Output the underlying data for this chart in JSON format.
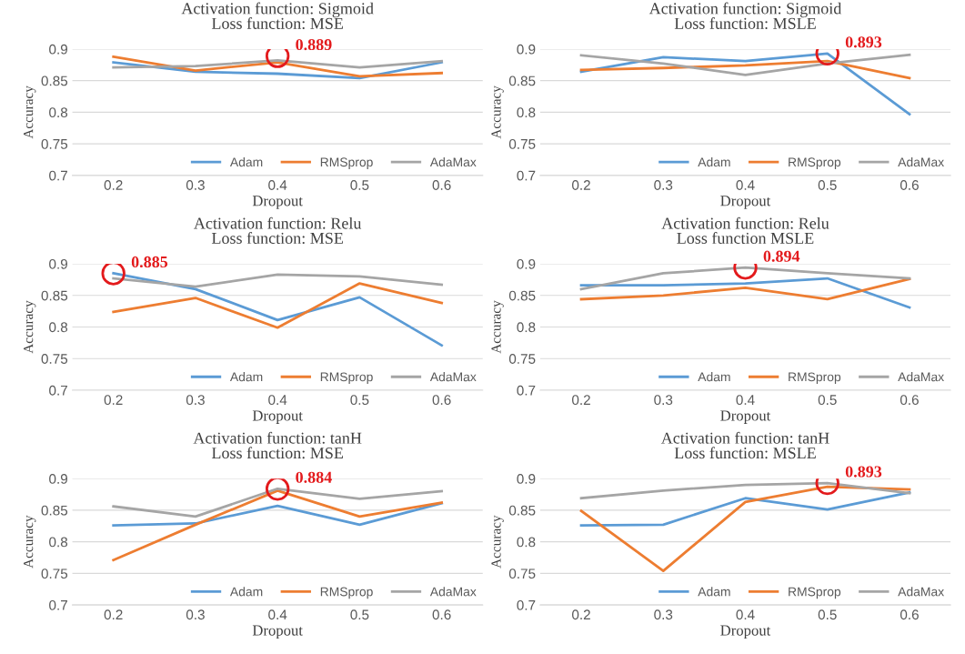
{
  "chart_data": [
    {
      "type": "line",
      "title": "Activation function: Sigmoid\nLoss function: MSE",
      "xlabel": "Dropout",
      "ylabel": "Accuracy",
      "categories": [
        "0.2",
        "0.3",
        "0.4",
        "0.5",
        "0.6"
      ],
      "ylim": [
        0.7,
        0.9
      ],
      "yticks": [
        0.7,
        0.75,
        0.8,
        0.85,
        0.9
      ],
      "grid": "y",
      "legend": "bottom right",
      "series": [
        {
          "name": "Adam",
          "color": "#5b9bd5",
          "values": [
            0.879,
            0.864,
            0.861,
            0.854,
            0.879
          ]
        },
        {
          "name": "RMSprop",
          "color": "#ed7d31",
          "values": [
            0.888,
            0.866,
            0.879,
            0.857,
            0.862
          ]
        },
        {
          "name": "AdaMax",
          "color": "#a5a5a5",
          "values": [
            0.871,
            0.873,
            0.882,
            0.871,
            0.881
          ]
        }
      ],
      "annotations": [
        {
          "text": "0.889",
          "x": "0.4",
          "y": 0.889
        }
      ]
    },
    {
      "type": "line",
      "title": "Activation function: Sigmoid\nLoss function: MSLE",
      "xlabel": "Dropout",
      "ylabel": "Accuracy",
      "categories": [
        "0.2",
        "0.3",
        "0.4",
        "0.5",
        "0.6"
      ],
      "ylim": [
        0.7,
        0.9
      ],
      "yticks": [
        0.7,
        0.75,
        0.8,
        0.85,
        0.9
      ],
      "grid": "y",
      "legend": "bottom right",
      "series": [
        {
          "name": "Adam",
          "color": "#5b9bd5",
          "values": [
            0.864,
            0.887,
            0.881,
            0.893,
            0.797
          ]
        },
        {
          "name": "RMSprop",
          "color": "#ed7d31",
          "values": [
            0.867,
            0.87,
            0.874,
            0.881,
            0.854
          ]
        },
        {
          "name": "AdaMax",
          "color": "#a5a5a5",
          "values": [
            0.89,
            0.877,
            0.859,
            0.877,
            0.891
          ]
        }
      ],
      "annotations": [
        {
          "text": "0.893",
          "x": "0.5",
          "y": 0.893
        }
      ]
    },
    {
      "type": "line",
      "title": "Activation function: Relu\nLoss function: MSE",
      "xlabel": "Dropout",
      "ylabel": "Accuracy",
      "categories": [
        "0.2",
        "0.3",
        "0.4",
        "0.5",
        "0.6"
      ],
      "ylim": [
        0.7,
        0.9
      ],
      "yticks": [
        0.7,
        0.75,
        0.8,
        0.85,
        0.9
      ],
      "grid": "y",
      "legend": "bottom right",
      "series": [
        {
          "name": "Adam",
          "color": "#5b9bd5",
          "values": [
            0.885,
            0.86,
            0.811,
            0.847,
            0.771
          ]
        },
        {
          "name": "RMSprop",
          "color": "#ed7d31",
          "values": [
            0.824,
            0.846,
            0.799,
            0.869,
            0.838
          ]
        },
        {
          "name": "AdaMax",
          "color": "#a5a5a5",
          "values": [
            0.877,
            0.864,
            0.883,
            0.88,
            0.867
          ]
        }
      ],
      "annotations": [
        {
          "text": "0.885",
          "x": "0.2",
          "y": 0.885
        }
      ]
    },
    {
      "type": "line",
      "title": "Activation function: Relu\nLoss function MSLE",
      "xlabel": "Dropout",
      "ylabel": "Accuracy",
      "categories": [
        "0.2",
        "0.3",
        "0.4",
        "0.5",
        "0.6"
      ],
      "ylim": [
        0.7,
        0.9
      ],
      "yticks": [
        0.7,
        0.75,
        0.8,
        0.85,
        0.9
      ],
      "grid": "y",
      "legend": "bottom right",
      "series": [
        {
          "name": "Adam",
          "color": "#5b9bd5",
          "values": [
            0.866,
            0.866,
            0.869,
            0.877,
            0.831
          ]
        },
        {
          "name": "RMSprop",
          "color": "#ed7d31",
          "values": [
            0.844,
            0.85,
            0.862,
            0.844,
            0.876
          ]
        },
        {
          "name": "AdaMax",
          "color": "#a5a5a5",
          "values": [
            0.86,
            0.885,
            0.894,
            0.885,
            0.877
          ]
        }
      ],
      "annotations": [
        {
          "text": "0.894",
          "x": "0.4",
          "y": 0.894
        }
      ]
    },
    {
      "type": "line",
      "title": "Activation function: tanH\nLoss function: MSE",
      "xlabel": "Dropout",
      "ylabel": "Accuracy",
      "categories": [
        "0.2",
        "0.3",
        "0.4",
        "0.5",
        "0.6"
      ],
      "ylim": [
        0.7,
        0.9
      ],
      "yticks": [
        0.7,
        0.75,
        0.8,
        0.85,
        0.9
      ],
      "grid": "y",
      "legend": "bottom right",
      "series": [
        {
          "name": "Adam",
          "color": "#5b9bd5",
          "values": [
            0.826,
            0.829,
            0.857,
            0.827,
            0.861
          ]
        },
        {
          "name": "RMSprop",
          "color": "#ed7d31",
          "values": [
            0.771,
            0.827,
            0.881,
            0.84,
            0.862
          ]
        },
        {
          "name": "AdaMax",
          "color": "#a5a5a5",
          "values": [
            0.856,
            0.84,
            0.884,
            0.868,
            0.88
          ]
        }
      ],
      "annotations": [
        {
          "text": "0.884",
          "x": "0.4",
          "y": 0.884
        }
      ]
    },
    {
      "type": "line",
      "title": "Activation function: tanH\nLoss function: MSLE",
      "xlabel": "Dropout",
      "ylabel": "Accuracy",
      "categories": [
        "0.2",
        "0.3",
        "0.4",
        "0.5",
        "0.6"
      ],
      "ylim": [
        0.7,
        0.9
      ],
      "yticks": [
        0.7,
        0.75,
        0.8,
        0.85,
        0.9
      ],
      "grid": "y",
      "legend": "bottom right",
      "series": [
        {
          "name": "Adam",
          "color": "#5b9bd5",
          "values": [
            0.826,
            0.827,
            0.869,
            0.851,
            0.878
          ]
        },
        {
          "name": "RMSprop",
          "color": "#ed7d31",
          "values": [
            0.849,
            0.754,
            0.863,
            0.887,
            0.883
          ]
        },
        {
          "name": "AdaMax",
          "color": "#a5a5a5",
          "values": [
            0.869,
            0.881,
            0.89,
            0.893,
            0.877
          ]
        }
      ],
      "annotations": [
        {
          "text": "0.893",
          "x": "0.5",
          "y": 0.893
        }
      ]
    }
  ]
}
